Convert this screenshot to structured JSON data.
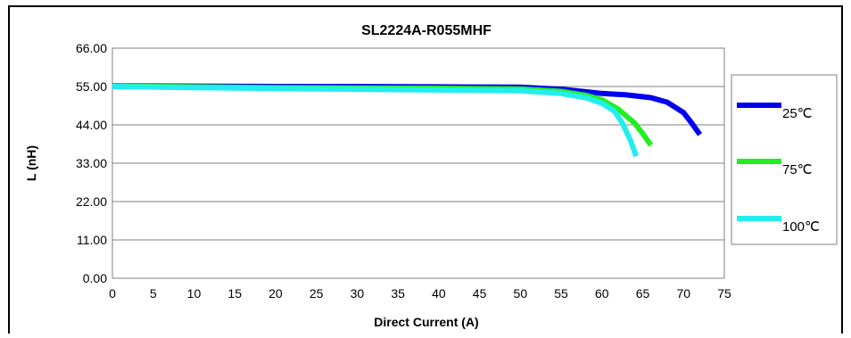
{
  "chart_data": {
    "type": "line",
    "title": "SL2224A-R055MHF",
    "xlabel": "Direct Current (A)",
    "ylabel": "L (nH)",
    "xlim": [
      0,
      75
    ],
    "ylim": [
      0,
      66
    ],
    "x_ticks": [
      "0",
      "5",
      "10",
      "15",
      "20",
      "25",
      "30",
      "35",
      "40",
      "45",
      "50",
      "55",
      "60",
      "65",
      "70",
      "75"
    ],
    "y_ticks": [
      "0.00",
      "11.00",
      "22.00",
      "33.00",
      "44.00",
      "55.00",
      "66.00"
    ],
    "grid": "horizontal",
    "legend_position": "right",
    "series": [
      {
        "name": "25℃",
        "color": "#0000ee",
        "points": [
          [
            0,
            55.2
          ],
          [
            10,
            55.1
          ],
          [
            20,
            55.0
          ],
          [
            30,
            55.0
          ],
          [
            40,
            54.9
          ],
          [
            50,
            54.8
          ],
          [
            55,
            54.2
          ],
          [
            58,
            53.5
          ],
          [
            60,
            53.0
          ],
          [
            63,
            52.6
          ],
          [
            66,
            51.8
          ],
          [
            68,
            50.5
          ],
          [
            70,
            47.5
          ],
          [
            71,
            44.5
          ],
          [
            72,
            41.2
          ]
        ]
      },
      {
        "name": "75℃",
        "color": "#22ee22",
        "points": [
          [
            0,
            55.1
          ],
          [
            10,
            54.9
          ],
          [
            20,
            54.7
          ],
          [
            30,
            54.6
          ],
          [
            40,
            54.5
          ],
          [
            50,
            54.3
          ],
          [
            55,
            53.6
          ],
          [
            58,
            52.5
          ],
          [
            60,
            51.2
          ],
          [
            62,
            48.5
          ],
          [
            64,
            44.5
          ],
          [
            65,
            41.5
          ],
          [
            66,
            38.2
          ]
        ]
      },
      {
        "name": "100℃",
        "color": "#22eeee",
        "points": [
          [
            0,
            55.0
          ],
          [
            10,
            54.7
          ],
          [
            20,
            54.4
          ],
          [
            30,
            54.2
          ],
          [
            40,
            54.0
          ],
          [
            50,
            53.8
          ],
          [
            55,
            53.0
          ],
          [
            58,
            51.8
          ],
          [
            60,
            50.2
          ],
          [
            61.5,
            48.0
          ],
          [
            62.5,
            44.5
          ],
          [
            63.5,
            39.5
          ],
          [
            64.2,
            35.0
          ]
        ]
      }
    ]
  }
}
